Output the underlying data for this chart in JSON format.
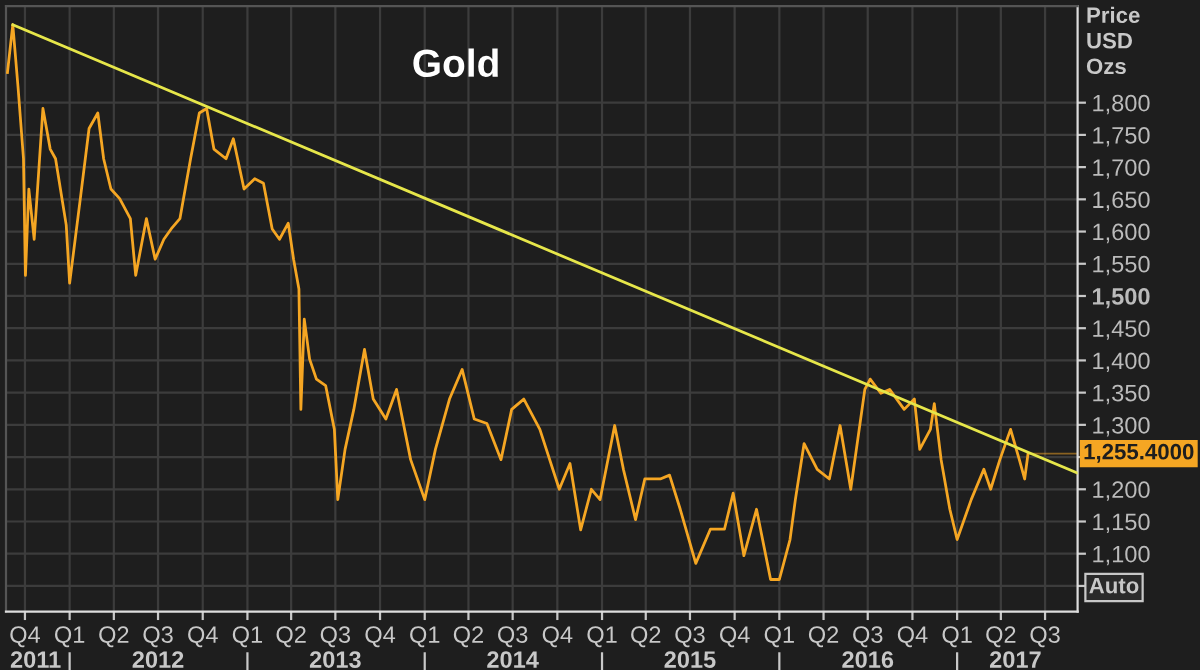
{
  "chart_data": {
    "type": "line",
    "title": "Gold",
    "ylabel": "Price\nUSD\nOzs",
    "x": [
      "2011-08-26",
      "2011-09-06",
      "2011-09-17",
      "2011-09-28",
      "2011-10-02",
      "2011-10-09",
      "2011-10-20",
      "2011-11-07",
      "2011-11-22",
      "2011-12-03",
      "2011-12-25",
      "2012-01-01",
      "2012-01-23",
      "2012-02-10",
      "2012-02-28",
      "2012-03-11",
      "2012-03-26",
      "2012-04-13",
      "2012-05-05",
      "2012-05-16",
      "2012-06-07",
      "2012-06-25",
      "2012-07-13",
      "2012-07-28",
      "2012-08-15",
      "2012-09-06",
      "2012-09-24",
      "2012-10-09",
      "2012-10-24",
      "2012-11-18",
      "2012-12-03",
      "2012-12-25",
      "2013-01-16",
      "2013-02-03",
      "2013-02-21",
      "2013-03-08",
      "2013-03-26",
      "2013-04-06",
      "2013-04-17",
      "2013-04-21",
      "2013-04-28",
      "2013-05-09",
      "2013-05-23",
      "2013-06-11",
      "2013-06-29",
      "2013-07-06",
      "2013-07-21",
      "2013-08-08",
      "2013-08-30",
      "2013-09-17",
      "2013-10-13",
      "2013-11-04",
      "2013-12-03",
      "2014-01-01",
      "2014-01-23",
      "2014-02-21",
      "2014-03-19",
      "2014-04-13",
      "2014-05-09",
      "2014-06-07",
      "2014-06-29",
      "2014-07-24",
      "2014-08-26",
      "2014-10-05",
      "2014-10-27",
      "2014-11-18",
      "2014-12-10",
      "2014-12-28",
      "2015-01-27",
      "2015-02-14",
      "2015-03-11",
      "2015-03-30",
      "2015-05-01",
      "2015-05-20",
      "2015-06-11",
      "2015-07-13",
      "2015-08-12",
      "2015-09-10",
      "2015-09-28",
      "2015-10-20",
      "2015-11-15",
      "2015-12-14",
      "2016-01-01",
      "2016-01-23",
      "2016-02-03",
      "2016-02-21",
      "2016-03-19",
      "2016-04-13",
      "2016-05-05",
      "2016-05-27",
      "2016-06-25",
      "2016-07-06",
      "2016-07-28",
      "2016-08-15",
      "2016-09-14",
      "2016-10-05",
      "2016-10-16",
      "2016-11-07",
      "2016-11-15",
      "2016-11-29",
      "2016-12-17",
      "2017-01-01",
      "2017-01-30",
      "2017-02-25",
      "2017-03-11",
      "2017-03-30",
      "2017-04-21",
      "2017-05-09",
      "2017-05-20",
      "2017-05-27"
    ],
    "series": [
      {
        "color": "#f5a623",
        "values": [
          1847,
          1921,
          1822,
          1713,
          1532,
          1666,
          1588,
          1791,
          1728,
          1713,
          1610,
          1520,
          1651,
          1760,
          1784,
          1713,
          1666,
          1651,
          1620,
          1532,
          1620,
          1557,
          1588,
          1604,
          1620,
          1713,
          1784,
          1791,
          1728,
          1713,
          1744,
          1666,
          1682,
          1675,
          1604,
          1588,
          1613,
          1557,
          1511,
          1324,
          1464,
          1402,
          1371,
          1361,
          1293,
          1184,
          1262,
          1324,
          1417,
          1340,
          1309,
          1355,
          1246,
          1184,
          1262,
          1340,
          1386,
          1309,
          1302,
          1246,
          1324,
          1340,
          1293,
          1200,
          1240,
          1137,
          1200,
          1184,
          1299,
          1231,
          1153,
          1216,
          1216,
          1222,
          1169,
          1085,
          1138,
          1138,
          1194,
          1097,
          1169,
          1060,
          1060,
          1122,
          1184,
          1271,
          1231,
          1216,
          1299,
          1200,
          1355,
          1371,
          1349,
          1355,
          1324,
          1340,
          1262,
          1293,
          1333,
          1246,
          1169,
          1122,
          1184,
          1231,
          1200,
          1246,
          1293,
          1246,
          1216,
          1255.4
        ]
      },
      {
        "type": "line",
        "color": "#e6e64a",
        "x": [
          "2011-09-06",
          "2017-09-06"
        ],
        "values": [
          1921,
          1225
        ]
      }
    ],
    "xlim": [
      "2011-08-23",
      "2017-09-06"
    ],
    "xticks": [
      {
        "value": "2011-10-01",
        "label": "Q4"
      },
      {
        "value": "2012-01-01",
        "label": "Q1"
      },
      {
        "value": "2012-04-01",
        "label": "Q2"
      },
      {
        "value": "2012-07-01",
        "label": "Q3"
      },
      {
        "value": "2012-10-01",
        "label": "Q4"
      },
      {
        "value": "2013-01-01",
        "label": "Q1"
      },
      {
        "value": "2013-04-01",
        "label": "Q2"
      },
      {
        "value": "2013-07-01",
        "label": "Q3"
      },
      {
        "value": "2013-10-01",
        "label": "Q4"
      },
      {
        "value": "2014-01-01",
        "label": "Q1"
      },
      {
        "value": "2014-04-01",
        "label": "Q2"
      },
      {
        "value": "2014-07-01",
        "label": "Q3"
      },
      {
        "value": "2014-10-01",
        "label": "Q4"
      },
      {
        "value": "2015-01-01",
        "label": "Q1"
      },
      {
        "value": "2015-04-01",
        "label": "Q2"
      },
      {
        "value": "2015-07-01",
        "label": "Q3"
      },
      {
        "value": "2015-10-01",
        "label": "Q4"
      },
      {
        "value": "2016-01-01",
        "label": "Q1"
      },
      {
        "value": "2016-04-01",
        "label": "Q2"
      },
      {
        "value": "2016-07-01",
        "label": "Q3"
      },
      {
        "value": "2016-10-01",
        "label": "Q4"
      },
      {
        "value": "2017-01-01",
        "label": "Q1"
      },
      {
        "value": "2017-04-01",
        "label": "Q2"
      },
      {
        "value": "2017-07-01",
        "label": "Q3"
      }
    ],
    "x2lim": [
      "2011-08-23",
      "2017-09-06"
    ],
    "x2ticks": [
      {
        "value": "2011-10-23",
        "label": "2011"
      },
      {
        "value": "2012-01-01",
        "label": null
      },
      {
        "value": "2012-07-01",
        "label": "2012"
      },
      {
        "value": "2013-01-01",
        "label": null
      },
      {
        "value": "2013-07-01",
        "label": "2013"
      },
      {
        "value": "2014-01-01",
        "label": null
      },
      {
        "value": "2014-07-01",
        "label": "2014"
      },
      {
        "value": "2015-01-01",
        "label": null
      },
      {
        "value": "2015-07-01",
        "label": "2015"
      },
      {
        "value": "2016-01-01",
        "label": null
      },
      {
        "value": "2016-07-01",
        "label": "2016"
      },
      {
        "value": "2017-01-01",
        "label": null
      },
      {
        "value": "2017-05-01",
        "label": "2017"
      }
    ],
    "ylim": [
      1010,
      1950
    ],
    "yticks": [
      {
        "value": 1050,
        "label": null
      },
      {
        "value": 1100,
        "label": "1,100"
      },
      {
        "value": 1150,
        "label": "1,150"
      },
      {
        "value": 1200,
        "label": "1,200"
      },
      {
        "value": 1250,
        "label": null
      },
      {
        "value": 1300,
        "label": "1,300"
      },
      {
        "value": 1350,
        "label": "1,350"
      },
      {
        "value": 1400,
        "label": "1,400"
      },
      {
        "value": 1450,
        "label": "1,450"
      },
      {
        "value": 1500,
        "label": "1,500"
      },
      {
        "value": 1550,
        "label": "1,550"
      },
      {
        "value": 1600,
        "label": "1,600"
      },
      {
        "value": 1650,
        "label": "1,650"
      },
      {
        "value": 1700,
        "label": "1,700"
      },
      {
        "value": 1750,
        "label": "1,750"
      },
      {
        "value": 1800,
        "label": "1,800"
      }
    ],
    "annotations": [
      {
        "text": "1,255.4000",
        "x": "2017-05-27",
        "y": 1255.4
      },
      "Auto"
    ],
    "grid": true,
    "legend": false,
    "marker": "none",
    "line_style": "solid"
  }
}
